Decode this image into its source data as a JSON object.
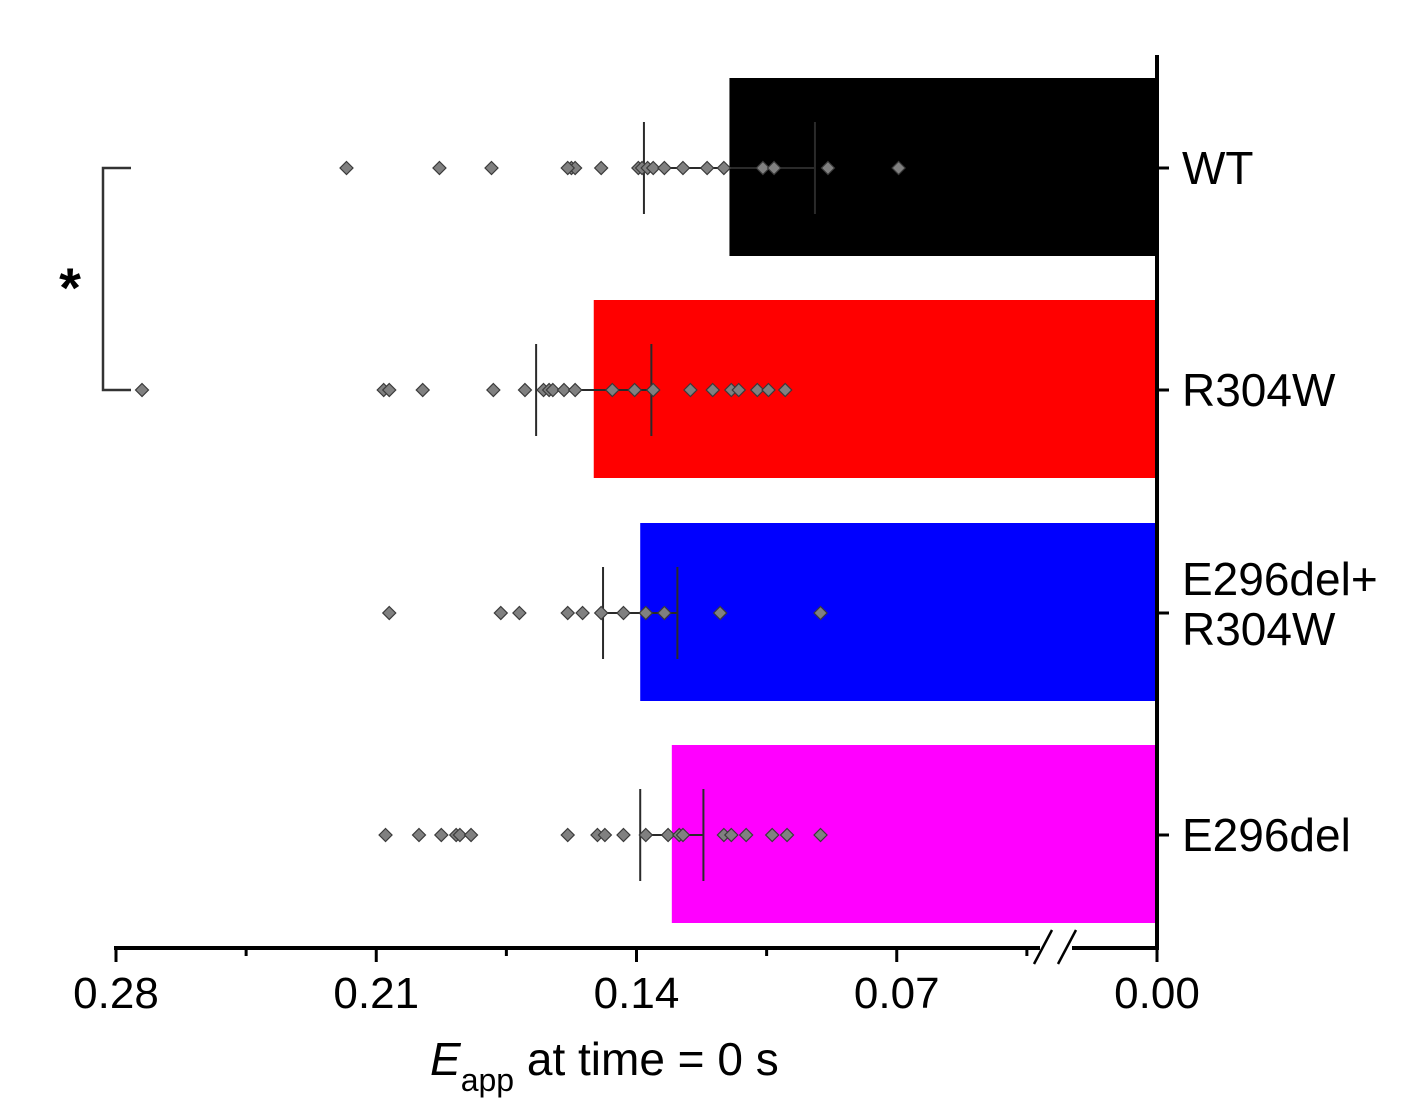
{
  "chart_data": {
    "type": "bar",
    "orientation": "horizontal",
    "x_reversed": true,
    "xlim": [
      0.28,
      0.0
    ],
    "x_ticks": [
      "0.28",
      "0.21",
      "0.14",
      "0.07",
      "0.00"
    ],
    "x_tick_values": [
      0.28,
      0.21,
      0.14,
      0.07,
      0.0
    ],
    "axis_break": "between 0.07 and 0.00",
    "xlabel_main": "E",
    "xlabel_sub": "app",
    "xlabel_rest": " at  time = 0 s",
    "categories": [
      "WT",
      "R304W",
      "E296del+\nR304W",
      "E296del"
    ],
    "category_lines": [
      [
        "WT"
      ],
      [
        "R304W"
      ],
      [
        "E296del+",
        "R304W"
      ],
      [
        "E296del"
      ]
    ],
    "bar_colors": [
      "#000000",
      "#ff0000",
      "#0000ff",
      "#ff00ff"
    ],
    "point_color": "#808080",
    "series": [
      {
        "values": [
          0.115,
          0.1515,
          0.139,
          0.1305
        ],
        "error_low": [
          0.092,
          0.136,
          0.129,
          0.122
        ],
        "error_high": [
          0.138,
          0.167,
          0.149,
          0.139
        ]
      }
    ],
    "points": [
      [
        0.218,
        0.193,
        0.179,
        0.1575,
        0.1565,
        0.1585,
        0.1495,
        0.1395,
        0.1385,
        0.137,
        0.1355,
        0.1325,
        0.1275,
        0.121,
        0.1165,
        0.106,
        0.103,
        0.0885,
        0.0695
      ],
      [
        0.273,
        0.208,
        0.2065,
        0.1975,
        0.1785,
        0.17,
        0.165,
        0.1635,
        0.1625,
        0.1595,
        0.1565,
        0.1465,
        0.1405,
        0.1355,
        0.1255,
        0.1195,
        0.1145,
        0.1125,
        0.1075,
        0.1045,
        0.1
      ],
      [
        0.2065,
        0.1765,
        0.1715,
        0.1585,
        0.1545,
        0.1495,
        0.1435,
        0.1375,
        0.1325,
        0.1175,
        0.0905
      ],
      [
        0.2075,
        0.1985,
        0.1925,
        0.1885,
        0.1875,
        0.1845,
        0.1585,
        0.1505,
        0.1485,
        0.1435,
        0.1375,
        0.1315,
        0.1285,
        0.1275,
        0.1165,
        0.1145,
        0.1105,
        0.1035,
        0.0995,
        0.0905
      ]
    ],
    "significance": {
      "label": "*",
      "between": [
        0,
        1
      ]
    },
    "grid": false,
    "legend": "none"
  }
}
